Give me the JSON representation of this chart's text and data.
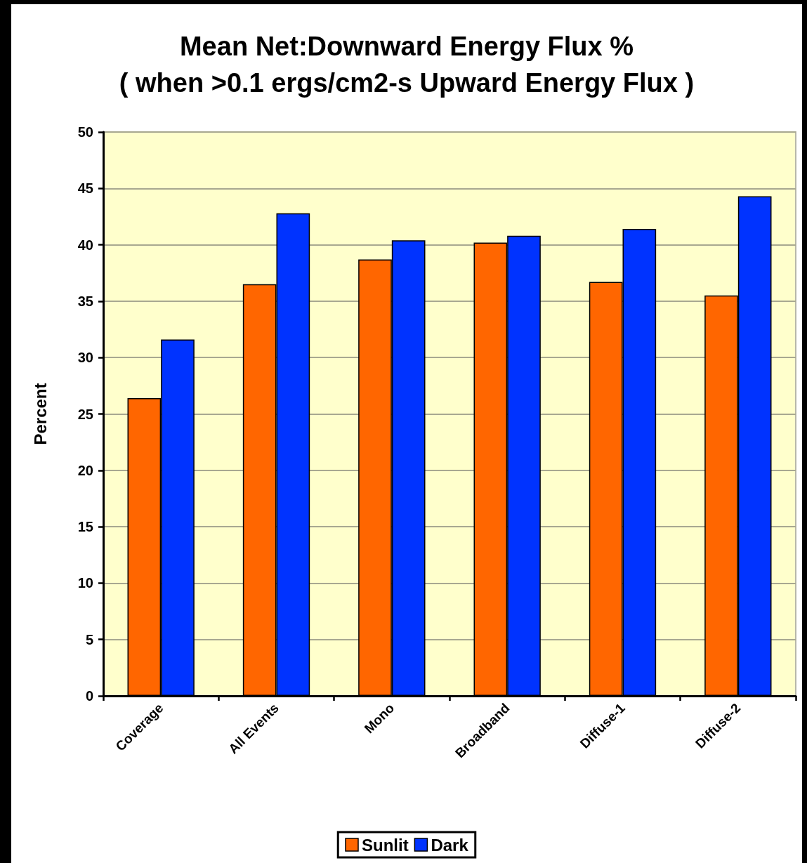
{
  "chart_data": {
    "type": "bar",
    "title": "Mean Net:Downward Energy Flux %",
    "subtitle": "( when >0.1 ergs/cm2-s Upward Energy Flux )",
    "ylabel": "Percent",
    "categories": [
      "Coverage",
      "All Events",
      "Mono",
      "Broadband",
      "Diffuse-1",
      "Diffuse-2"
    ],
    "series": [
      {
        "name": "Sunlit",
        "color": "#ff6600",
        "values": [
          26.4,
          36.5,
          38.7,
          40.2,
          36.7,
          35.5
        ]
      },
      {
        "name": "Dark",
        "color": "#0033ff",
        "values": [
          31.6,
          42.8,
          40.4,
          40.8,
          41.4,
          44.3
        ]
      }
    ],
    "ylim": [
      0,
      50
    ],
    "yticks": [
      0,
      5,
      10,
      15,
      20,
      25,
      30,
      35,
      40,
      45,
      50
    ],
    "grid": "y",
    "legend": "bottom"
  }
}
